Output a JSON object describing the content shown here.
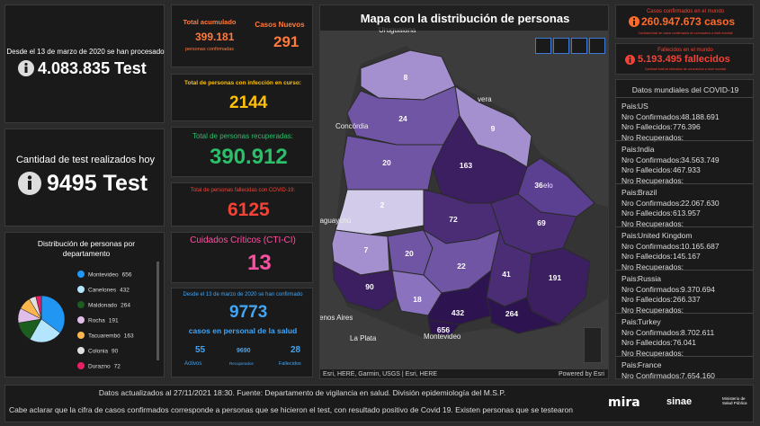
{
  "tests_total": {
    "caption": "Desde el 13 de marzo de 2020 se han procesado",
    "value": "4.083.835 Test"
  },
  "tests_today": {
    "caption": "Cantidad de test realizados hoy",
    "value": "9495 Test"
  },
  "distribution": {
    "title": "Distribución de personas por departamento",
    "categories": [
      "Montevideo",
      "Canelones",
      "Maldonado",
      "Rocha",
      "Tacuarembó",
      "Colonia",
      "Durazno"
    ],
    "values": [
      656,
      432,
      264,
      191,
      163,
      90,
      72
    ],
    "colors": [
      "#2196f3",
      "#b3e5fc",
      "#1b5e20",
      "#e1bee7",
      "#ffb74d",
      "#e0e0e0",
      "#e91e63"
    ]
  },
  "accumulated": {
    "label": "Total acumulado",
    "value": "399.181",
    "sub": "personas confirmadas"
  },
  "new_cases": {
    "label": "Casos Nuevos",
    "value": "291"
  },
  "active": {
    "label": "Total de personas con infección en curso:",
    "value": "2144"
  },
  "recovered": {
    "label": "Total de personas recuperadas:",
    "value": "390.912"
  },
  "deceased": {
    "label": "Total de personas fallecidas con COVID-19:",
    "value": "6125"
  },
  "critical": {
    "label": "Cuidados Críticos (CTI-CI)",
    "value": "13"
  },
  "health_staff": {
    "caption": "Desde el 13 de marzo de 2020 se han confirmado",
    "value": "9773",
    "sub": "casos en personal de la salud",
    "items": [
      {
        "value": "55",
        "label": "Activos"
      },
      {
        "value": "9690",
        "label": "Recuperados"
      },
      {
        "value": "28",
        "label": "Fallecidos"
      }
    ]
  },
  "map": {
    "title": "Mapa con la distribución de personas",
    "places": [
      "Uruguaiana",
      "Concórdia",
      "uaguaychú",
      "enos Aires",
      "La Plata",
      "Montevideo",
      "vera",
      "elo"
    ],
    "departments": [
      "8",
      "24",
      "9",
      "163",
      "20",
      "36",
      "2",
      "72",
      "69",
      "7",
      "20",
      "22",
      "41",
      "191",
      "90",
      "18",
      "432",
      "264",
      "656"
    ],
    "attribution": "Esri, HERE, Garmin, USGS | Esri, HERE",
    "powered": "Powered by Esri"
  },
  "world_cases": {
    "label": "Casos confirmados en el mundo",
    "value": "260.947.673 casos",
    "note": "Cantidad total de casos confirmados de coronavirus a nivel mundial"
  },
  "world_deaths": {
    "label": "Fallecidos en el mundo",
    "value": "5.193.495 fallecidos",
    "note": "Cantidad total de fallecidos de coronavirus a nivel mundial"
  },
  "world_list": {
    "title": "Datos mundiales del COVID-19",
    "labels": [
      "Pais:",
      "Nro Confirmados:",
      "Nro Fallecidos:",
      "Nro Recuperados:"
    ],
    "rows": [
      [
        "US",
        "48.188.691",
        "776.396"
      ],
      [
        "India",
        "34.563.749",
        "467.933"
      ],
      [
        "Brazil",
        "22.067.630",
        "613.957"
      ],
      [
        "United Kingdom",
        "10.165.687",
        "145.167"
      ],
      [
        "Russia",
        "9.370.694",
        "266.337"
      ],
      [
        "Turkey",
        "8.702.611",
        "76.041"
      ],
      [
        "France",
        "7.654.160",
        ""
      ]
    ]
  },
  "footer": {
    "line1": "Datos actualizados al 27/11/2021 18:30. Fuente: Departamento de vigilancia en salud. División epidemiología del M.S.P.",
    "line2": "Cabe aclarar que la cifra de casos confirmados corresponde a personas que se hicieron el test, con resultado positivo de Covid 19. Existen personas que se testearon",
    "logos": [
      "mira",
      "sinae",
      "Ministerio de Salud Pública"
    ]
  }
}
